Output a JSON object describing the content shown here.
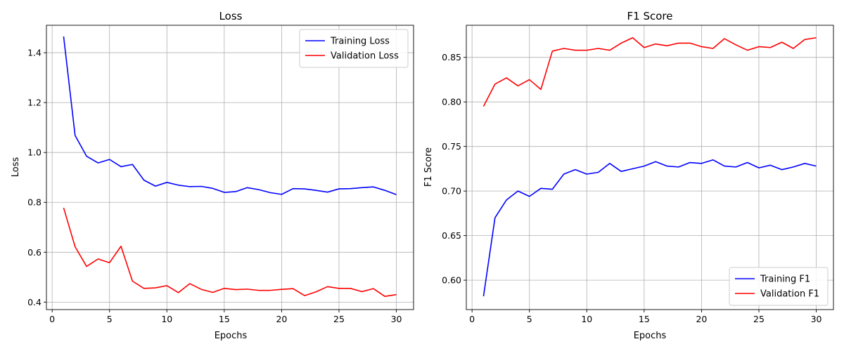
{
  "chart_data": [
    {
      "type": "line",
      "title": "Loss",
      "xlabel": "Epochs",
      "ylabel": "Loss",
      "xlim": [
        -0.5,
        31.5
      ],
      "ylim": [
        0.37,
        1.51
      ],
      "xticks": [
        0,
        5,
        10,
        15,
        20,
        25,
        30
      ],
      "yticks": [
        0.4,
        0.6,
        0.8,
        1.0,
        1.2,
        1.4
      ],
      "ytick_labels": [
        "0.4",
        "0.6",
        "0.8",
        "1.0",
        "1.2",
        "1.4"
      ],
      "grid": true,
      "legend_position": "top-right",
      "x": [
        1,
        2,
        3,
        4,
        5,
        6,
        7,
        8,
        9,
        10,
        11,
        12,
        13,
        14,
        15,
        16,
        17,
        18,
        19,
        20,
        21,
        22,
        23,
        24,
        25,
        26,
        27,
        28,
        29,
        30
      ],
      "series": [
        {
          "name": "Training Loss",
          "color": "#0000ff",
          "values": [
            1.465,
            1.068,
            0.985,
            0.958,
            0.972,
            0.943,
            0.952,
            0.889,
            0.865,
            0.88,
            0.869,
            0.863,
            0.864,
            0.856,
            0.84,
            0.843,
            0.859,
            0.851,
            0.839,
            0.832,
            0.855,
            0.854,
            0.848,
            0.841,
            0.854,
            0.855,
            0.859,
            0.862,
            0.848,
            0.831
          ]
        },
        {
          "name": "Validation Loss",
          "color": "#ff0000",
          "values": [
            0.778,
            0.622,
            0.543,
            0.573,
            0.558,
            0.624,
            0.484,
            0.455,
            0.457,
            0.466,
            0.438,
            0.474,
            0.451,
            0.439,
            0.455,
            0.45,
            0.452,
            0.447,
            0.447,
            0.451,
            0.454,
            0.426,
            0.441,
            0.462,
            0.455,
            0.455,
            0.442,
            0.454,
            0.423,
            0.43
          ]
        }
      ]
    },
    {
      "type": "line",
      "title": "F1 Score",
      "xlabel": "Epochs",
      "ylabel": "F1 Score",
      "xlim": [
        -0.5,
        31.5
      ],
      "ylim": [
        0.567,
        0.886
      ],
      "xticks": [
        0,
        5,
        10,
        15,
        20,
        25,
        30
      ],
      "yticks": [
        0.6,
        0.65,
        0.7,
        0.75,
        0.8,
        0.85
      ],
      "ytick_labels": [
        "0.60",
        "0.65",
        "0.70",
        "0.75",
        "0.80",
        "0.85"
      ],
      "grid": true,
      "legend_position": "bottom-right",
      "x": [
        1,
        2,
        3,
        4,
        5,
        6,
        7,
        8,
        9,
        10,
        11,
        12,
        13,
        14,
        15,
        16,
        17,
        18,
        19,
        20,
        21,
        22,
        23,
        24,
        25,
        26,
        27,
        28,
        29,
        30
      ],
      "series": [
        {
          "name": "Training F1",
          "color": "#0000ff",
          "values": [
            0.582,
            0.67,
            0.69,
            0.7,
            0.694,
            0.703,
            0.702,
            0.719,
            0.724,
            0.719,
            0.721,
            0.731,
            0.722,
            0.725,
            0.728,
            0.733,
            0.728,
            0.727,
            0.732,
            0.731,
            0.735,
            0.728,
            0.727,
            0.732,
            0.726,
            0.729,
            0.724,
            0.727,
            0.731,
            0.728
          ]
        },
        {
          "name": "Validation F1",
          "color": "#ff0000",
          "values": [
            0.795,
            0.82,
            0.827,
            0.818,
            0.825,
            0.814,
            0.857,
            0.86,
            0.858,
            0.858,
            0.86,
            0.858,
            0.866,
            0.872,
            0.861,
            0.865,
            0.863,
            0.866,
            0.866,
            0.862,
            0.86,
            0.871,
            0.864,
            0.858,
            0.862,
            0.861,
            0.867,
            0.86,
            0.87,
            0.872
          ]
        }
      ]
    }
  ]
}
